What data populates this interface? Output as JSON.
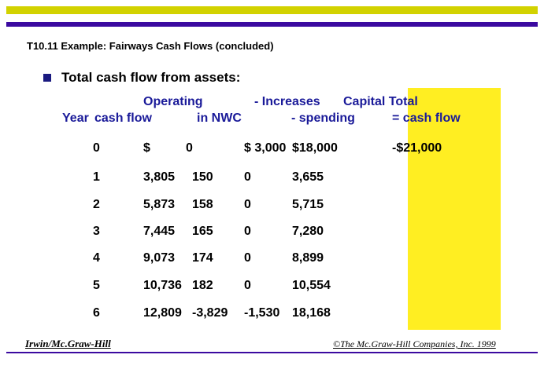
{
  "title": "T10.11  Example: Fairways Cash Flows (concluded)",
  "bullet": "Total cash flow from assets:",
  "headers": {
    "line1": {
      "operating": "Operating",
      "increases": "- Increases",
      "capital": "Capital Total"
    },
    "line2": {
      "year": "Year",
      "cashflow": "cash flow",
      "nwc": "in NWC",
      "spending": "- spending",
      "total": "= cash flow"
    }
  },
  "rows": [
    {
      "year": "0",
      "op": "$",
      "nwc": "0",
      "cap": "$ 3,000",
      "spend": "$18,000",
      "total": "-$21,000"
    },
    {
      "year": "1",
      "op": "3,805",
      "nwc": "150",
      "cap": "0",
      "spend": "3,655",
      "total": ""
    },
    {
      "year": "2",
      "op": "5,873",
      "nwc": "158",
      "cap": "0",
      "spend": "5,715",
      "total": ""
    },
    {
      "year": "3",
      "op": "7,445",
      "nwc": "165",
      "cap": "0",
      "spend": "7,280",
      "total": ""
    },
    {
      "year": "4",
      "op": "9,073",
      "nwc": "174",
      "cap": "0",
      "spend": "8,899",
      "total": ""
    },
    {
      "year": "5",
      "op": "10,736",
      "nwc": "182",
      "cap": "0",
      "spend": "10,554",
      "total": ""
    },
    {
      "year": "6",
      "op": "12,809",
      "nwc": "-3,829",
      "cap": "-1,530",
      "spend": "18,168",
      "total": ""
    }
  ],
  "footer": {
    "left": "Irwin/Mc.Graw-Hill",
    "right": "©The Mc.Graw-Hill Companies, Inc. 1999"
  },
  "colors": {
    "topbar": "#d2d200",
    "stripe": "#3b0aa0",
    "highlight": "#ffee22",
    "header_text": "#1a1a99"
  }
}
